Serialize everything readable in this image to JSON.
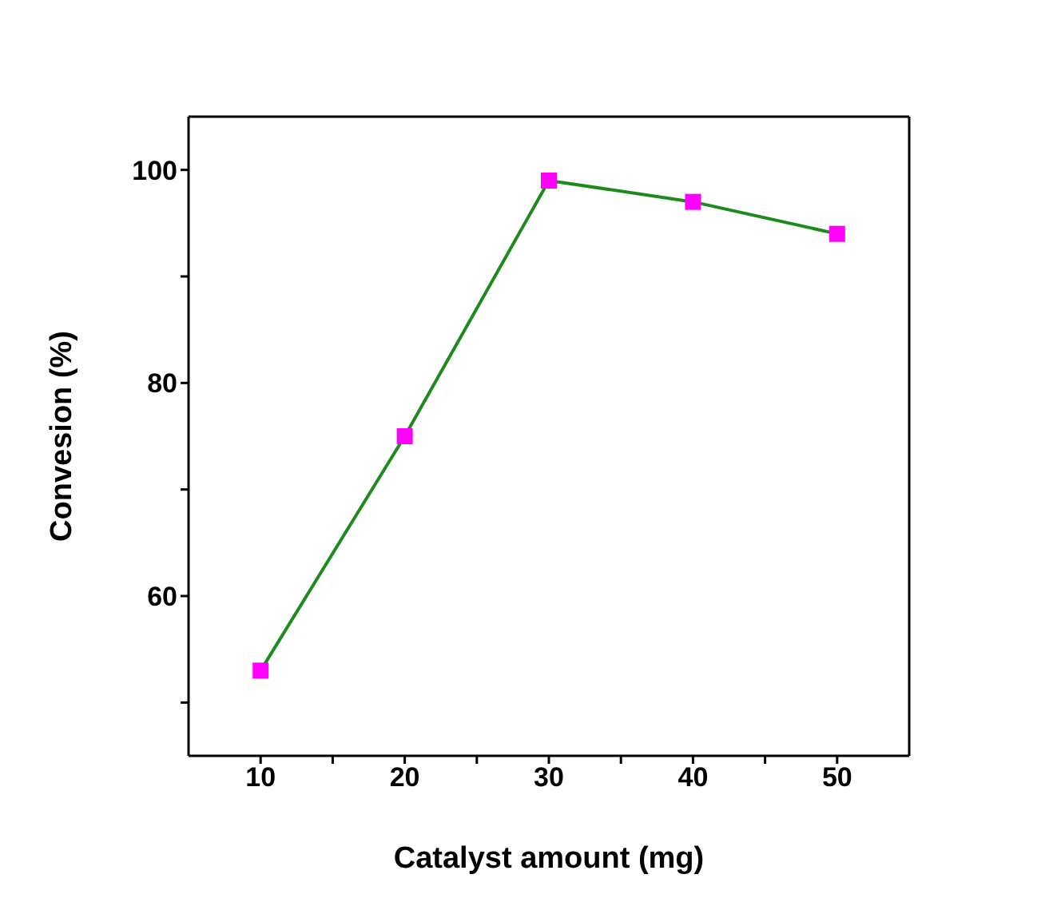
{
  "chart_data": {
    "type": "line",
    "xlabel": "Catalyst amount (mg)",
    "ylabel": "Convesion (%)",
    "x": [
      10,
      20,
      30,
      40,
      50
    ],
    "series": [
      {
        "color": "#1e8a1e",
        "colors": [
          "#ff00ff",
          "#ff00ff",
          "#ff00ff",
          "#ff00ff",
          "#ff00ff"
        ],
        "values": [
          53,
          75,
          99,
          97,
          94
        ]
      }
    ],
    "xlim": [
      5,
      55
    ],
    "xticks": [
      10,
      {
        "value": 15,
        "label": null
      },
      20,
      {
        "value": 25,
        "label": null
      },
      30,
      {
        "value": 35,
        "label": null
      },
      40,
      {
        "value": 45,
        "label": null
      },
      50
    ],
    "ylim": [
      45,
      105
    ],
    "yticks": [
      {
        "value": 50,
        "label": null
      },
      60,
      {
        "value": 70,
        "label": null
      },
      80,
      {
        "value": 90,
        "label": null
      },
      100
    ],
    "marker": "square",
    "line_style": "solid",
    "grid": false,
    "legend": false
  }
}
